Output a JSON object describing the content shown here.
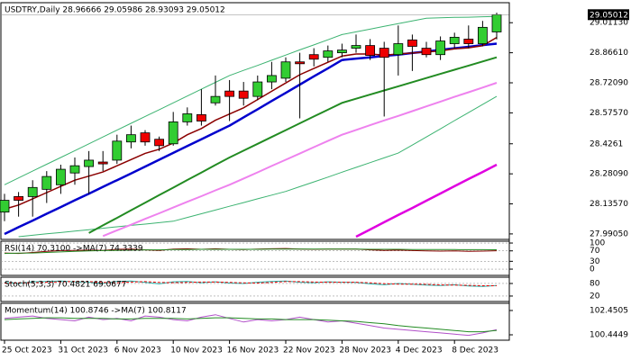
{
  "chart_data": [
    {
      "type": "candlestick",
      "title": "USDTRY,Daily  28.96666 29.05986 28.93093 29.05012",
      "categories": [
        "25 Oct 2023",
        null,
        null,
        null,
        "31 Oct 2023",
        null,
        null,
        null,
        "6 Nov 2023",
        null,
        null,
        null,
        "10 Nov 2023",
        null,
        null,
        null,
        "16 Nov 2023",
        null,
        null,
        null,
        "22 Nov 2023",
        null,
        null,
        null,
        "28 Nov 2023",
        null,
        null,
        null,
        "4 Dec 2023",
        null,
        null,
        null,
        "8 Dec 2023",
        null,
        null,
        null
      ],
      "open": [
        28.096,
        28.171,
        28.171,
        28.206,
        28.228,
        28.285,
        28.316,
        28.338,
        28.347,
        28.435,
        28.479,
        28.448,
        28.426,
        28.532,
        28.567,
        28.624,
        28.681,
        28.681,
        28.655,
        28.725,
        28.743,
        28.822,
        28.857,
        28.844,
        28.866,
        28.888,
        28.901,
        28.888,
        28.857,
        28.928,
        28.888,
        28.857,
        28.91,
        28.932,
        28.91,
        28.96666
      ],
      "high": [
        28.184,
        28.193,
        28.25,
        28.294,
        28.325,
        28.36,
        28.391,
        28.391,
        28.47,
        28.514,
        28.492,
        28.461,
        28.58,
        28.602,
        28.69,
        28.756,
        28.734,
        28.725,
        28.756,
        28.822,
        28.844,
        28.866,
        28.888,
        28.901,
        28.91,
        28.954,
        28.932,
        28.919,
        28.998,
        28.954,
        28.919,
        28.945,
        28.963,
        28.998,
        29.02,
        29.05986
      ],
      "low": [
        28.052,
        28.074,
        28.074,
        28.14,
        28.184,
        28.228,
        28.184,
        28.294,
        28.329,
        28.404,
        28.417,
        28.391,
        28.417,
        28.514,
        28.514,
        28.611,
        28.536,
        28.611,
        28.637,
        28.69,
        28.725,
        28.549,
        28.8,
        28.822,
        28.844,
        28.866,
        28.831,
        28.558,
        28.756,
        28.778,
        28.844,
        28.831,
        28.888,
        28.888,
        28.897,
        28.93093
      ],
      "close": [
        28.153,
        28.153,
        28.215,
        28.268,
        28.303,
        28.32,
        28.347,
        28.329,
        28.439,
        28.47,
        28.435,
        28.417,
        28.532,
        28.571,
        28.536,
        28.655,
        28.655,
        28.646,
        28.725,
        28.756,
        28.822,
        28.813,
        28.835,
        28.875,
        28.879,
        28.901,
        28.853,
        28.844,
        28.91,
        28.897,
        28.857,
        28.923,
        28.941,
        28.91,
        28.989,
        29.05012
      ],
      "up_color": "#32cd32",
      "down_color": "#ee0000",
      "series": [
        {
          "color": "#3cb371",
          "width": 1,
          "values": [
            28.228,
            28.261,
            28.294,
            28.327,
            28.36,
            28.393,
            28.426,
            28.459,
            28.492,
            28.525,
            28.558,
            28.591,
            28.624,
            28.657,
            28.69,
            28.723,
            28.756,
            28.781,
            28.805,
            28.83,
            28.855,
            28.88,
            28.904,
            28.929,
            28.954,
            28.967,
            28.98,
            28.994,
            29.007,
            29.02,
            29.033,
            29.035,
            29.037,
            29.038,
            29.04,
            29.042
          ]
        },
        {
          "color": "#3cb371",
          "width": 1,
          "values": [
            null,
            27.977,
            27.984,
            27.991,
            27.997,
            28.004,
            28.011,
            28.018,
            28.025,
            28.032,
            28.038,
            28.045,
            28.052,
            28.07,
            28.088,
            28.106,
            28.124,
            28.142,
            28.16,
            28.178,
            28.196,
            28.219,
            28.242,
            28.265,
            28.289,
            28.312,
            28.335,
            28.358,
            28.381,
            28.42,
            28.459,
            28.498,
            28.538,
            28.577,
            28.616,
            28.655
          ]
        },
        {
          "color": "#ee82ee",
          "width": 2,
          "values": [
            null,
            null,
            null,
            null,
            null,
            null,
            null,
            27.98,
            28.008,
            28.035,
            28.063,
            28.09,
            28.118,
            28.146,
            28.173,
            28.201,
            28.228,
            28.258,
            28.288,
            28.319,
            28.349,
            28.379,
            28.41,
            28.44,
            28.47,
            28.493,
            28.516,
            28.539,
            28.561,
            28.584,
            28.607,
            28.63,
            28.653,
            28.675,
            28.698,
            28.721
          ]
        },
        {
          "color": "#e000e0",
          "width": 2.5,
          "values": [
            null,
            null,
            null,
            null,
            null,
            null,
            null,
            null,
            null,
            null,
            null,
            null,
            null,
            null,
            null,
            null,
            null,
            null,
            null,
            null,
            null,
            null,
            null,
            null,
            null,
            27.977,
            28.012,
            28.047,
            28.082,
            28.116,
            28.151,
            28.186,
            28.221,
            28.256,
            28.29,
            28.325
          ]
        },
        {
          "color": "#228b22",
          "width": 2,
          "values": [
            null,
            null,
            null,
            null,
            null,
            null,
            27.995,
            28.032,
            28.068,
            28.105,
            28.141,
            28.178,
            28.214,
            28.251,
            28.287,
            28.324,
            28.36,
            28.393,
            28.426,
            28.459,
            28.492,
            28.525,
            28.558,
            28.591,
            28.624,
            28.644,
            28.664,
            28.684,
            28.704,
            28.724,
            28.744,
            28.764,
            28.784,
            28.804,
            28.824,
            28.844
          ]
        },
        {
          "color": "#0000cd",
          "width": 2.5,
          "values": [
            27.99,
            28.023,
            28.055,
            28.088,
            28.12,
            28.153,
            28.185,
            28.218,
            28.25,
            28.283,
            28.316,
            28.349,
            28.382,
            28.415,
            28.448,
            28.481,
            28.514,
            28.554,
            28.593,
            28.633,
            28.672,
            28.712,
            28.752,
            28.791,
            28.831,
            28.838,
            28.844,
            28.851,
            28.857,
            28.865,
            28.872,
            28.88,
            28.888,
            28.895,
            28.903,
            28.91
          ]
        },
        {
          "color": "#8b0000",
          "width": 1.5,
          "values": [
            28.11,
            28.13,
            28.16,
            28.19,
            28.22,
            28.25,
            28.27,
            28.29,
            28.32,
            28.35,
            28.38,
            28.4,
            28.43,
            28.47,
            28.5,
            28.54,
            28.57,
            28.6,
            28.64,
            28.68,
            28.72,
            28.76,
            28.79,
            28.82,
            28.85,
            28.86,
            28.86,
            28.855,
            28.86,
            28.865,
            28.87,
            28.875,
            28.885,
            28.89,
            28.9,
            28.94
          ]
        }
      ],
      "current_price": 29.05012,
      "ylim": [
        27.964,
        29.108
      ],
      "yticks": [
        {
          "value": 29.0113,
          "label": "29.01130"
        },
        {
          "value": 28.8661,
          "label": "28.86610"
        },
        {
          "value": 28.7209,
          "label": "28.72090"
        },
        {
          "value": 28.5757,
          "label": "28.57570"
        },
        28.4261,
        {
          "value": 28.2809,
          "label": "28.28090"
        },
        {
          "value": 28.1357,
          "label": "28.13570"
        },
        {
          "value": 27.9905,
          "label": "27.99050"
        }
      ]
    },
    {
      "type": "line",
      "title": "RSI(14) 70.3100  ->MA(7) 74.3339",
      "series": [
        {
          "color": "#8b0000",
          "values": [
            62,
            60,
            64,
            68,
            71,
            72,
            73,
            72,
            76,
            77,
            74,
            72,
            77,
            78,
            76,
            78,
            76,
            75,
            77,
            78,
            79,
            77,
            76,
            77,
            77,
            77,
            74,
            72,
            73,
            71,
            70,
            69,
            70,
            68,
            69,
            70.31
          ]
        },
        {
          "color": "#228b22",
          "values": [
            60,
            61,
            62,
            64,
            66,
            68,
            70,
            71,
            72,
            73,
            74,
            74,
            75,
            75,
            76,
            76,
            76,
            76,
            76,
            77,
            77,
            77,
            77,
            77,
            77,
            77,
            76,
            76,
            76,
            75,
            75,
            75,
            75,
            74.5,
            74.5,
            74.3339
          ]
        }
      ],
      "ylim": [
        -24,
        107
      ],
      "yticks": [
        100,
        70,
        30,
        0
      ],
      "grid": true
    },
    {
      "type": "line",
      "title": "Stoch(5,3,3) 70.4821 69.0677",
      "series": [
        {
          "color": "#20b2aa",
          "values": [
            85,
            80,
            88,
            90,
            92,
            88,
            86,
            80,
            90,
            92,
            85,
            78,
            88,
            90,
            84,
            88,
            82,
            80,
            86,
            90,
            92,
            86,
            84,
            88,
            86,
            85,
            78,
            74,
            80,
            76,
            72,
            70,
            74,
            68,
            66,
            70.4821
          ]
        },
        {
          "color": "#ee0000",
          "dash": true,
          "values": [
            82,
            83,
            84,
            86,
            88,
            90,
            89,
            85,
            84,
            87,
            89,
            85,
            84,
            85,
            87,
            87,
            85,
            83,
            82,
            85,
            89,
            89,
            87,
            86,
            86,
            86,
            83,
            79,
            77,
            77,
            76,
            73,
            72,
            71,
            69,
            69.0677
          ]
        }
      ],
      "ylim": [
        -6,
        110
      ],
      "yticks": [
        80,
        20
      ],
      "grid": true
    },
    {
      "type": "line",
      "title": "Momentum(14) 100.8746  ->MA(7) 100.8117",
      "series": [
        {
          "color": "#b04fc8",
          "values": [
            101.8,
            101.9,
            102.0,
            101.8,
            101.7,
            101.6,
            101.9,
            101.7,
            101.8,
            101.6,
            102.0,
            101.9,
            101.7,
            101.6,
            101.9,
            102.1,
            101.8,
            101.5,
            101.7,
            101.6,
            101.7,
            101.9,
            101.7,
            101.5,
            101.6,
            101.4,
            101.2,
            101.0,
            100.9,
            100.8,
            100.7,
            100.6,
            100.5,
            100.4,
            100.6,
            100.8746
          ]
        },
        {
          "color": "#228b22",
          "values": [
            101.7,
            101.75,
            101.8,
            101.85,
            101.85,
            101.8,
            101.8,
            101.8,
            101.75,
            101.75,
            101.8,
            101.8,
            101.8,
            101.75,
            101.8,
            101.85,
            101.85,
            101.8,
            101.75,
            101.75,
            101.7,
            101.7,
            101.7,
            101.65,
            101.6,
            101.55,
            101.45,
            101.35,
            101.2,
            101.1,
            101.0,
            100.9,
            100.8,
            100.7,
            100.7,
            100.8117
          ]
        }
      ],
      "ylim": [
        100.0,
        103.045
      ],
      "yticks": [
        102.4505,
        100.4449
      ],
      "grid": false
    }
  ]
}
